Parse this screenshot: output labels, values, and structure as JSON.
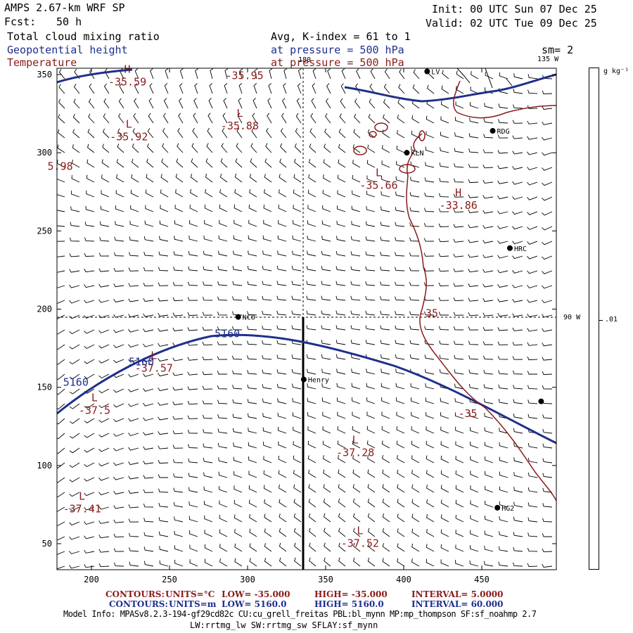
{
  "header": {
    "model": "AMPS 2.67-km WRF SP",
    "fcst_label": "Fcst:",
    "fcst_value": "50 h",
    "init": "Init: 00 UTC Sun 07 Dec 25",
    "valid": "Valid: 02 UTC Tue 09 Dec 25",
    "field1": "Total cloud mixing ratio",
    "field2": "Geopotential height",
    "field3": "Temperature",
    "avg": "Avg, K-index =  61 to   1",
    "pres1": "at pressure =  500 hPa",
    "pres2": "at pressure =  500 hPa",
    "sm": "sm= 2",
    "lon135": "135 W",
    "lon90": "90 W",
    "lon180": "180"
  },
  "colorbar": {
    "units": "g kg⁻¹",
    "tick": ".01"
  },
  "axes": {
    "x_ticks": [
      "200",
      "250",
      "300",
      "350",
      "400",
      "450"
    ],
    "y_ticks": [
      "350",
      "300",
      "250",
      "200",
      "150",
      "100",
      "50"
    ]
  },
  "stations": [
    {
      "name": "LV",
      "x": 415,
      "y": 352
    },
    {
      "name": "RDG",
      "x": 457,
      "y": 314
    },
    {
      "name": "KLN",
      "x": 402,
      "y": 300
    },
    {
      "name": "HRC",
      "x": 468,
      "y": 239
    },
    {
      "name": "NCO",
      "x": 294,
      "y": 195
    },
    {
      "name": "Henry",
      "x": 336,
      "y": 155
    },
    {
      "name": "HG2",
      "x": 460,
      "y": 73
    },
    {
      "name": "",
      "x": 488,
      "y": 141
    }
  ],
  "temperature_labels": [
    {
      "kind": "H",
      "value": "-35.59",
      "x": 223,
      "y": 343
    },
    {
      "kind": "",
      "value": "-35.95",
      "x": 298,
      "y": 347
    },
    {
      "kind": "L",
      "value": "-35.88",
      "x": 295,
      "y": 315
    },
    {
      "kind": "L",
      "value": "-35.92",
      "x": 224,
      "y": 308
    },
    {
      "kind": "",
      "value": "5.98",
      "x": 180,
      "y": 289
    },
    {
      "kind": "L",
      "value": "-35.66",
      "x": 384,
      "y": 277
    },
    {
      "kind": "H",
      "value": "-33.86",
      "x": 435,
      "y": 264
    },
    {
      "kind": "L",
      "value": "-37.57",
      "x": 240,
      "y": 160
    },
    {
      "kind": "L",
      "value": "-37.5",
      "x": 202,
      "y": 133
    },
    {
      "kind": "L",
      "value": "-37.28",
      "x": 369,
      "y": 106
    },
    {
      "kind": "L",
      "value": "-37.41",
      "x": 194,
      "y": 70
    },
    {
      "kind": "L",
      "value": "-37.52",
      "x": 372,
      "y": 48
    }
  ],
  "contour_labels": [
    {
      "value": "-35",
      "x": 416,
      "y": 195
    },
    {
      "value": "-35",
      "x": 441,
      "y": 131
    },
    {
      "value": "5160",
      "x": 287,
      "y": 182
    },
    {
      "value": "5160",
      "x": 232,
      "y": 164
    },
    {
      "value": "5160",
      "x": 190,
      "y": 151
    }
  ],
  "footer": {
    "line1_label": "CONTOURS:",
    "line1_units": "UNITS=°C",
    "line1_low": "LOW= -35.000",
    "line1_high": "HIGH= -35.000",
    "line1_interval": "INTERVAL=   5.0000",
    "line2_label": "CONTOURS:",
    "line2_units": "UNITS=m",
    "line2_low": "LOW=  5160.0",
    "line2_high": "HIGH=  5160.0",
    "line2_interval": "INTERVAL=   60.000",
    "info1": "Model Info: MPASv8.2.3-194-gf29cd82c CU:cu_grell_freitas PBL:bl_mynn MP:mp_thompson SF:sf_noahmp 2.7",
    "info2": "LW:rrtmg_lw SW:rrtmg_sw SFLAY:sf_mynn"
  },
  "colors": {
    "height_contour": "#1f2f8c",
    "temperature_contour": "#8b1a1a",
    "coast": "#1f2f8c",
    "barbs": "#000000"
  }
}
